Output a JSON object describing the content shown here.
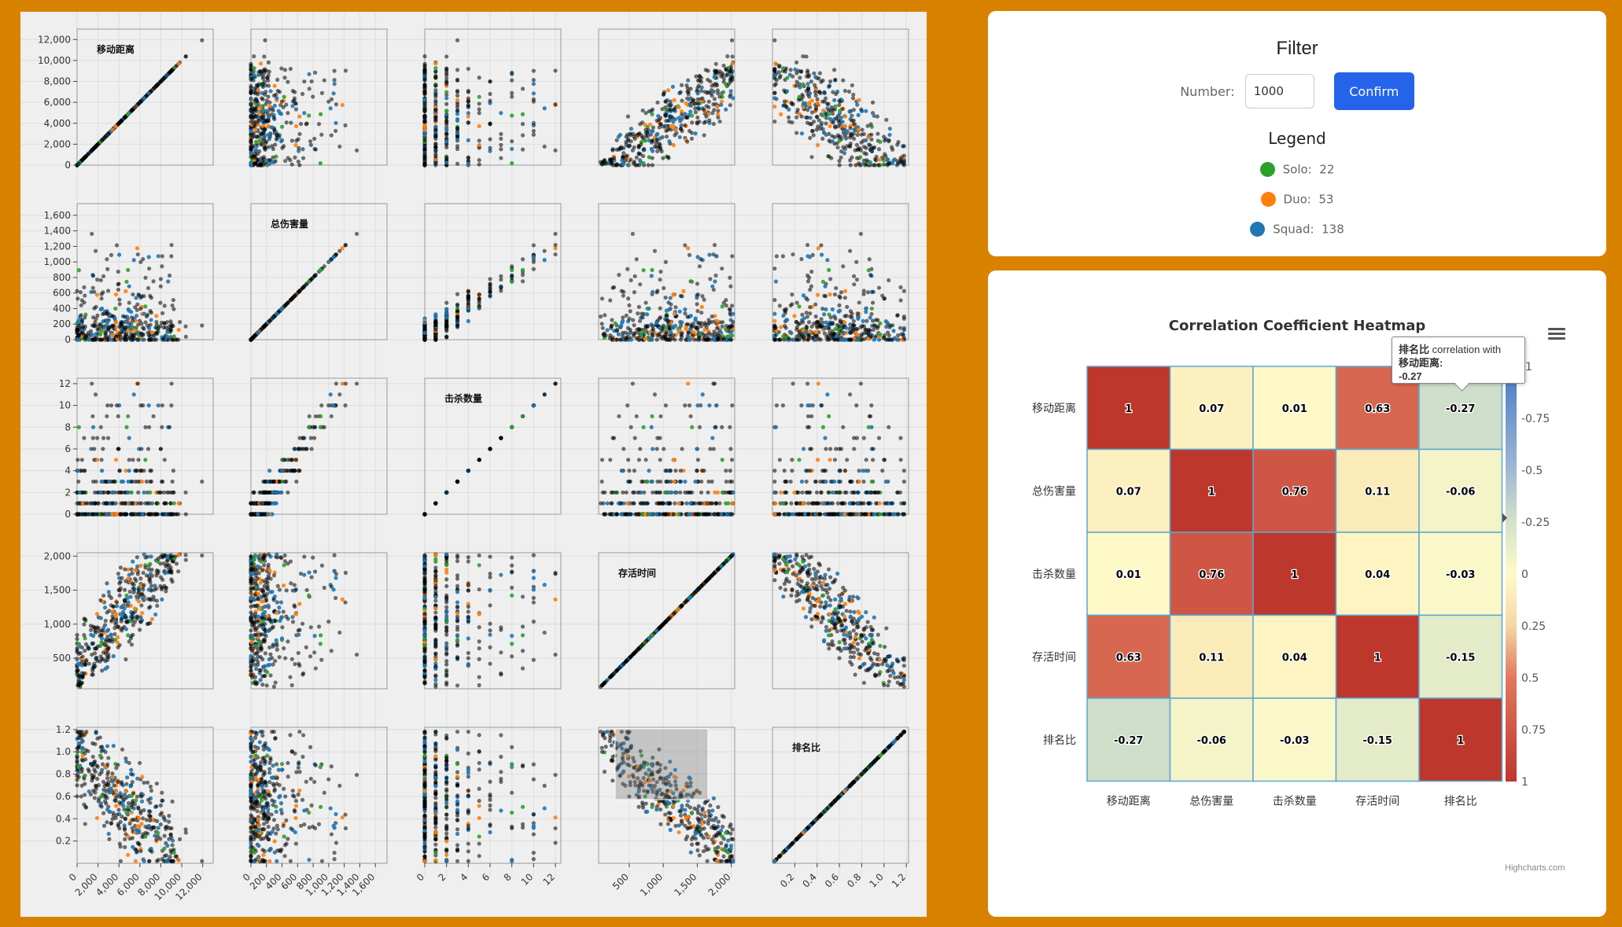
{
  "filter": {
    "title": "Filter",
    "number_label": "Number:",
    "number_value": "1000",
    "confirm_label": "Confirm"
  },
  "legend": {
    "title": "Legend",
    "items": [
      {
        "label": "Solo:",
        "count": "22",
        "color": "#2ca02c"
      },
      {
        "label": "Duo:",
        "count": "53",
        "color": "#ff7f0e"
      },
      {
        "label": "Squad:",
        "count": "138",
        "color": "#1f77b4"
      }
    ]
  },
  "heatmap": {
    "title": "Correlation Coefficient Heatmap",
    "credit": "Highcharts.com",
    "menu_icon": "hamburger-menu-icon",
    "tooltip": {
      "series": "排名比",
      "text": "correlation with",
      "target": "移动距离:",
      "value": "-0.27"
    }
  },
  "chart_data": [
    {
      "type": "scatter",
      "title": "",
      "variables": [
        "移动距离",
        "总伤害量",
        "击杀数量",
        "存活时间",
        "排名比"
      ],
      "x_ticks": [
        [
          "0",
          "2,000",
          "4,000",
          "6,000",
          "8,000",
          "10,000",
          "12,000"
        ],
        [
          "0",
          "200",
          "400",
          "600",
          "800",
          "1,000",
          "1,200",
          "1,400",
          "1,600"
        ],
        [
          "0",
          "2",
          "4",
          "6",
          "8",
          "10",
          "12"
        ],
        [
          "500",
          "1,000",
          "1,500",
          "2,000"
        ],
        [
          "0.2",
          "0.4",
          "0.6",
          "0.8",
          "1.0",
          "1.2"
        ]
      ],
      "y_ticks": [
        [
          "0",
          "2,000",
          "4,000",
          "6,000",
          "8,000",
          "10,000",
          "12,000"
        ],
        [
          "0",
          "200",
          "400",
          "600",
          "800",
          "1,000",
          "1,200",
          "1,400",
          "1,600"
        ],
        [
          "0",
          "2",
          "4",
          "6",
          "8",
          "10",
          "12"
        ],
        [
          "500",
          "1,000",
          "1,500",
          "2,000"
        ],
        [
          "0.2",
          "0.4",
          "0.6",
          "0.8",
          "1.0",
          "1.2"
        ]
      ],
      "ranges": [
        [
          0,
          13000
        ],
        [
          0,
          1750
        ],
        [
          0,
          12.5
        ],
        [
          50,
          2050
        ],
        [
          0,
          1.22
        ]
      ],
      "point_colors": {
        "solo": "#2ca02c",
        "duo": "#ff7f0e",
        "squad": "#1f77b4",
        "unknown": "#000000"
      },
      "grid": true
    },
    {
      "type": "heatmap",
      "title": "Correlation Coefficient Heatmap",
      "categories": [
        "移动距离",
        "总伤害量",
        "击杀数量",
        "存活时间",
        "排名比"
      ],
      "values": [
        [
          1,
          0.07,
          0.01,
          0.63,
          -0.27
        ],
        [
          0.07,
          1,
          0.76,
          0.11,
          -0.06
        ],
        [
          0.01,
          0.76,
          1,
          0.04,
          -0.03
        ],
        [
          0.63,
          0.11,
          0.04,
          1,
          -0.15
        ],
        [
          -0.27,
          -0.06,
          -0.03,
          -0.15,
          1
        ]
      ],
      "colorbar_ticks": [
        "-1",
        "-0.75",
        "-0.5",
        "-0.25",
        "0",
        "0.25",
        "0.5",
        "0.75",
        "1"
      ],
      "colorbar_range": [
        -1,
        1
      ]
    }
  ]
}
